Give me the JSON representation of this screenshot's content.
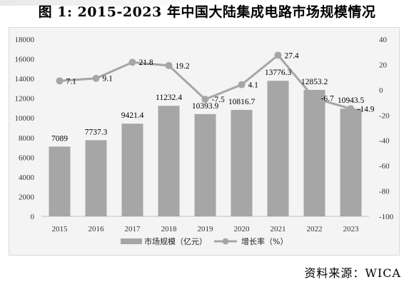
{
  "title": "图 1: 2015-2023 年中国大陆集成电路市场规模情况",
  "source": "资料来源：WICA",
  "chart_data": {
    "type": "bar",
    "categories": [
      "2015",
      "2016",
      "2017",
      "2018",
      "2019",
      "2020",
      "2021",
      "2022",
      "2023"
    ],
    "series": [
      {
        "name": "市场规模（亿元）",
        "type": "bar",
        "axis": "left",
        "color": "#a6a6a6",
        "values": [
          7089,
          7737.3,
          9421.4,
          11232.4,
          10393.9,
          10816.7,
          13776.3,
          12853.2,
          10943.5
        ],
        "labels": [
          "7089",
          "7737.3",
          "9421.4",
          "11232.4",
          "10393.9",
          "10816.7",
          "13776.3",
          "12853.2",
          "10943.5"
        ]
      },
      {
        "name": "增长率（%）",
        "type": "line",
        "axis": "right",
        "color": "#a6a6a6",
        "values": [
          7.1,
          9.1,
          21.8,
          19.2,
          -7.5,
          4.1,
          27.4,
          -6.7,
          -14.9
        ],
        "labels": [
          "7.1",
          "9.1",
          "21.8",
          "19.2",
          "-7.5",
          "4.1",
          "27.4",
          "-6.7",
          "-14.9"
        ]
      }
    ],
    "ylim_left": [
      0,
      18000
    ],
    "yticks_left": [
      "0",
      "2000",
      "4000",
      "6000",
      "8000",
      "10000",
      "12000",
      "14000",
      "16000",
      "18000"
    ],
    "ylim_right": [
      -100,
      40
    ],
    "yticks_right": [
      "-100",
      "-80",
      "-60",
      "-40",
      "-20",
      "0",
      "20",
      "40"
    ],
    "grid": false,
    "legend": "bottom"
  }
}
